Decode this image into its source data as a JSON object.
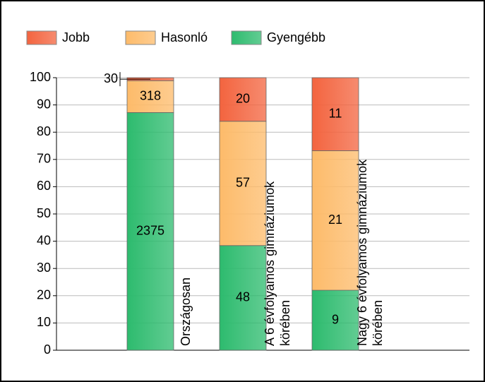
{
  "chart_data": {
    "type": "stacked-bar-100",
    "categories": [
      "Országosan",
      "A 6 évfolyamos gimnáziumok körében",
      "Nagy 6 évfolyamos gimnáziumok körében"
    ],
    "series": [
      {
        "name": "Gyengébb",
        "color": "#2dbb6e",
        "values": [
          87.2,
          38.4,
          22.0
        ],
        "counts": [
          2375,
          48,
          9
        ]
      },
      {
        "name": "Hasonló",
        "color": "#fdbb6a",
        "values": [
          11.7,
          45.6,
          51.2
        ],
        "counts": [
          318,
          57,
          21
        ]
      },
      {
        "name": "Jobb",
        "color": "#f3643f",
        "values": [
          1.1,
          16.0,
          26.8
        ],
        "counts": [
          30,
          20,
          11
        ]
      }
    ],
    "ylim": [
      0,
      100
    ],
    "yticks": [
      0,
      10,
      20,
      30,
      40,
      50,
      60,
      70,
      80,
      90,
      100
    ],
    "grid": true,
    "legend": "top"
  }
}
